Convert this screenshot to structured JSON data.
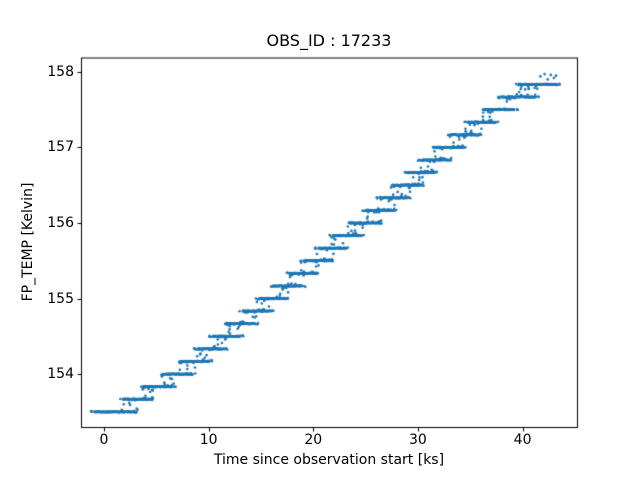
{
  "chart_data": {
    "type": "scatter",
    "title": "OBS_ID : 17233",
    "xlabel": "Time since observation start [ks]",
    "ylabel": "FP_TEMP [Kelvin]",
    "xlim": [
      -2.2,
      45.2
    ],
    "ylim": [
      153.3,
      158.19
    ],
    "xticks": [
      0,
      10,
      20,
      30,
      40
    ],
    "yticks": [
      154,
      155,
      156,
      157,
      158
    ],
    "grid": false,
    "legend": null,
    "marker_color": "#1f77b4",
    "background_color": "#ffffff",
    "axis_color": "#000000",
    "quantization_step_kelvin": 0.1667,
    "steps": [
      {
        "temp": 153.5,
        "t_start": -0.9,
        "t_end": 3.0
      },
      {
        "temp": 153.667,
        "t_start": 1.9,
        "t_end": 4.5
      },
      {
        "temp": 153.833,
        "t_start": 3.9,
        "t_end": 6.5
      },
      {
        "temp": 154.0,
        "t_start": 5.8,
        "t_end": 8.4
      },
      {
        "temp": 154.167,
        "t_start": 7.4,
        "t_end": 10.0
      },
      {
        "temp": 154.333,
        "t_start": 8.9,
        "t_end": 11.5
      },
      {
        "temp": 154.5,
        "t_start": 10.4,
        "t_end": 13.0
      },
      {
        "temp": 154.667,
        "t_start": 11.8,
        "t_end": 14.4
      },
      {
        "temp": 154.833,
        "t_start": 13.3,
        "t_end": 15.9
      },
      {
        "temp": 155.0,
        "t_start": 14.8,
        "t_end": 17.4
      },
      {
        "temp": 155.167,
        "t_start": 16.3,
        "t_end": 18.9
      },
      {
        "temp": 155.333,
        "t_start": 17.7,
        "t_end": 20.3
      },
      {
        "temp": 155.5,
        "t_start": 19.1,
        "t_end": 21.7
      },
      {
        "temp": 155.667,
        "t_start": 20.5,
        "t_end": 23.1
      },
      {
        "temp": 155.833,
        "t_start": 21.9,
        "t_end": 24.5
      },
      {
        "temp": 156.0,
        "t_start": 23.6,
        "t_end": 26.2
      },
      {
        "temp": 156.167,
        "t_start": 25.0,
        "t_end": 27.6
      },
      {
        "temp": 156.333,
        "t_start": 26.4,
        "t_end": 29.0
      },
      {
        "temp": 156.5,
        "t_start": 27.7,
        "t_end": 30.3
      },
      {
        "temp": 156.667,
        "t_start": 29.0,
        "t_end": 31.6
      },
      {
        "temp": 156.833,
        "t_start": 30.3,
        "t_end": 32.9
      },
      {
        "temp": 157.0,
        "t_start": 31.7,
        "t_end": 34.3
      },
      {
        "temp": 157.167,
        "t_start": 33.2,
        "t_end": 35.8
      },
      {
        "temp": 157.333,
        "t_start": 34.8,
        "t_end": 37.4
      },
      {
        "temp": 157.5,
        "t_start": 36.4,
        "t_end": 39.2
      },
      {
        "temp": 157.667,
        "t_start": 38.0,
        "t_end": 41.2
      },
      {
        "temp": 157.833,
        "t_start": 39.7,
        "t_end": 43.3
      }
    ],
    "outliers": [
      [
        41.7,
        157.94
      ],
      [
        42.1,
        157.97
      ],
      [
        42.4,
        157.9
      ],
      [
        42.7,
        157.96
      ],
      [
        43.0,
        157.92
      ],
      [
        43.2,
        157.95
      ]
    ]
  }
}
